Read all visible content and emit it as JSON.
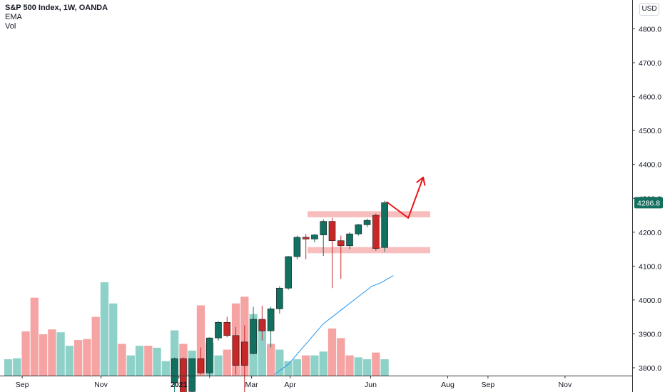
{
  "legend": {
    "title": "S&P 500 Index, 1W, OANDA",
    "ema": "EMA",
    "vol": "Vol"
  },
  "currency": "USD",
  "last_price_label": "4286.8",
  "colors": {
    "up": "#26a69a",
    "down": "#ef5350",
    "up_body": "#11705f",
    "down_body": "#c62828",
    "vol_up": "#8ed1c8",
    "vol_down": "#f5a3a3",
    "ema": "#2196f3",
    "zone": "#f7b1b1",
    "arrow": "#e8161b",
    "axis_text": "#131722",
    "axis_line": "#333333",
    "price_tag": "#13705f"
  },
  "chart_data": {
    "type": "candlestick",
    "title": "S&P 500 Index, 1W, OANDA",
    "ylim": [
      3780,
      4885
    ],
    "y_ticks": [
      3800,
      3900,
      4000,
      4100,
      4200,
      4300,
      4400,
      4500,
      4600,
      4700,
      4800
    ],
    "y_tick_labels": [
      "3800.0",
      "3900.0",
      "4000.0",
      "4100.0",
      "4200.0",
      "4300.0",
      "4400.0",
      "4500.0",
      "4600.0",
      "4700.0",
      "4800.0"
    ],
    "x_ticks": [
      {
        "label": "Sep",
        "week": 1.6
      },
      {
        "label": "Nov",
        "week": 10.6
      },
      {
        "label": "2021",
        "week": 19.5
      },
      {
        "label": "Mar",
        "week": 27.8
      },
      {
        "label": "Apr",
        "week": 32.2
      },
      {
        "label": "Jun",
        "week": 41.4
      },
      {
        "label": "Aug",
        "week": 50.2
      },
      {
        "label": "Sep",
        "week": 54.8
      },
      {
        "label": "Nov",
        "week": 63.6
      }
    ],
    "candles": [
      {
        "week": 19,
        "open": 3756,
        "high": 3830,
        "low": 3720,
        "close": 3827
      },
      {
        "week": 20,
        "open": 3827,
        "high": 3830,
        "low": 3700,
        "close": 3726
      },
      {
        "week": 21,
        "open": 3730,
        "high": 3828,
        "low": 3700,
        "close": 3827
      },
      {
        "week": 22,
        "open": 3827,
        "high": 3860,
        "low": 3780,
        "close": 3785
      },
      {
        "week": 23,
        "open": 3785,
        "high": 3890,
        "low": 3770,
        "close": 3888
      },
      {
        "week": 24,
        "open": 3888,
        "high": 3938,
        "low": 3880,
        "close": 3934
      },
      {
        "week": 25,
        "open": 3934,
        "high": 3950,
        "low": 3890,
        "close": 3895
      },
      {
        "week": 26,
        "open": 3895,
        "high": 3920,
        "low": 3780,
        "close": 3807
      },
      {
        "week": 27,
        "open": 3876,
        "high": 3925,
        "low": 3721,
        "close": 3807
      },
      {
        "week": 28,
        "open": 3842,
        "high": 3980,
        "low": 3840,
        "close": 3943
      },
      {
        "week": 29,
        "open": 3943,
        "high": 3983,
        "low": 3880,
        "close": 3909
      },
      {
        "week": 30,
        "open": 3909,
        "high": 3980,
        "low": 3860,
        "close": 3974
      },
      {
        "week": 31,
        "open": 3974,
        "high": 4040,
        "low": 3960,
        "close": 4035
      },
      {
        "week": 32,
        "open": 4035,
        "high": 4130,
        "low": 4030,
        "close": 4128
      },
      {
        "week": 33,
        "open": 4128,
        "high": 4190,
        "low": 4120,
        "close": 4185
      },
      {
        "week": 34,
        "open": 4185,
        "high": 4195,
        "low": 4120,
        "close": 4180
      },
      {
        "week": 35,
        "open": 4180,
        "high": 4195,
        "low": 4170,
        "close": 4192
      },
      {
        "week": 36,
        "open": 4192,
        "high": 4238,
        "low": 4130,
        "close": 4232
      },
      {
        "week": 37,
        "open": 4232,
        "high": 4242,
        "low": 4035,
        "close": 4175
      },
      {
        "week": 38,
        "open": 4175,
        "high": 4190,
        "low": 4062,
        "close": 4160
      },
      {
        "week": 39,
        "open": 4160,
        "high": 4200,
        "low": 4150,
        "close": 4195
      },
      {
        "week": 40,
        "open": 4195,
        "high": 4225,
        "low": 4190,
        "close": 4222
      },
      {
        "week": 41,
        "open": 4222,
        "high": 4240,
        "low": 4215,
        "close": 4235
      },
      {
        "week": 42,
        "open": 4250,
        "high": 4255,
        "low": 4145,
        "close": 4152
      },
      {
        "week": 43,
        "open": 4155,
        "high": 4293,
        "low": 4142,
        "close": 4287
      }
    ],
    "volume": [
      {
        "week": 0,
        "dir": "up",
        "height": 0.17
      },
      {
        "week": 1,
        "dir": "up",
        "height": 0.18
      },
      {
        "week": 2,
        "dir": "down",
        "height": 0.46
      },
      {
        "week": 3,
        "dir": "down",
        "height": 0.81
      },
      {
        "week": 4,
        "dir": "down",
        "height": 0.43
      },
      {
        "week": 5,
        "dir": "down",
        "height": 0.48
      },
      {
        "week": 6,
        "dir": "up",
        "height": 0.45
      },
      {
        "week": 7,
        "dir": "up",
        "height": 0.31
      },
      {
        "week": 8,
        "dir": "down",
        "height": 0.37
      },
      {
        "week": 9,
        "dir": "down",
        "height": 0.38
      },
      {
        "week": 10,
        "dir": "down",
        "height": 0.61
      },
      {
        "week": 11,
        "dir": "up",
        "height": 0.97
      },
      {
        "week": 12,
        "dir": "up",
        "height": 0.75
      },
      {
        "week": 13,
        "dir": "down",
        "height": 0.33
      },
      {
        "week": 14,
        "dir": "up",
        "height": 0.21
      },
      {
        "week": 15,
        "dir": "up",
        "height": 0.31
      },
      {
        "week": 16,
        "dir": "down",
        "height": 0.31
      },
      {
        "week": 17,
        "dir": "up",
        "height": 0.29
      },
      {
        "week": 18,
        "dir": "up",
        "height": 0.15
      },
      {
        "week": 19,
        "dir": "up",
        "height": 0.47
      },
      {
        "week": 20,
        "dir": "down",
        "height": 0.33
      },
      {
        "week": 21,
        "dir": "up",
        "height": 0.26
      },
      {
        "week": 22,
        "dir": "down",
        "height": 0.73
      },
      {
        "week": 23,
        "dir": "up",
        "height": 0.34
      },
      {
        "week": 24,
        "dir": "up",
        "height": 0.21
      },
      {
        "week": 25,
        "dir": "down",
        "height": 0.27
      },
      {
        "week": 26,
        "dir": "down",
        "height": 0.75
      },
      {
        "week": 27,
        "dir": "down",
        "height": 0.82
      },
      {
        "week": 28,
        "dir": "up",
        "height": 0.64
      },
      {
        "week": 29,
        "dir": "up",
        "height": 0.58
      },
      {
        "week": 30,
        "dir": "down",
        "height": 0.33
      },
      {
        "week": 31,
        "dir": "up",
        "height": 0.27
      },
      {
        "week": 32,
        "dir": "up",
        "height": 0.15
      },
      {
        "week": 33,
        "dir": "up",
        "height": 0.17
      },
      {
        "week": 34,
        "dir": "down",
        "height": 0.21
      },
      {
        "week": 35,
        "dir": "up",
        "height": 0.21
      },
      {
        "week": 36,
        "dir": "up",
        "height": 0.25
      },
      {
        "week": 37,
        "dir": "down",
        "height": 0.49
      },
      {
        "week": 38,
        "dir": "down",
        "height": 0.39
      },
      {
        "week": 39,
        "dir": "down",
        "height": 0.21
      },
      {
        "week": 40,
        "dir": "up",
        "height": 0.19
      },
      {
        "week": 41,
        "dir": "up",
        "height": 0.17
      },
      {
        "week": 42,
        "dir": "down",
        "height": 0.24
      },
      {
        "week": 43,
        "dir": "up",
        "height": 0.17
      }
    ],
    "ema_line": [
      {
        "week": 30.4,
        "price": 3780
      },
      {
        "week": 32,
        "price": 3810
      },
      {
        "week": 34,
        "price": 3870
      },
      {
        "week": 36,
        "price": 3930
      },
      {
        "week": 38,
        "price": 3970
      },
      {
        "week": 40,
        "price": 4010
      },
      {
        "week": 41.5,
        "price": 4040
      },
      {
        "week": 42.5,
        "price": 4050
      },
      {
        "week": 44,
        "price": 4072
      }
    ],
    "zones": [
      {
        "week_start": 34.2,
        "week_end": 48.2,
        "price_low": 4244,
        "price_high": 4262
      },
      {
        "week_start": 34.2,
        "week_end": 48.2,
        "price_low": 4138,
        "price_high": 4156
      }
    ],
    "arrow_path": [
      {
        "week": 43.2,
        "price": 4290
      },
      {
        "week": 45.7,
        "price": 4242
      },
      {
        "week": 47.4,
        "price": 4362
      }
    ]
  }
}
